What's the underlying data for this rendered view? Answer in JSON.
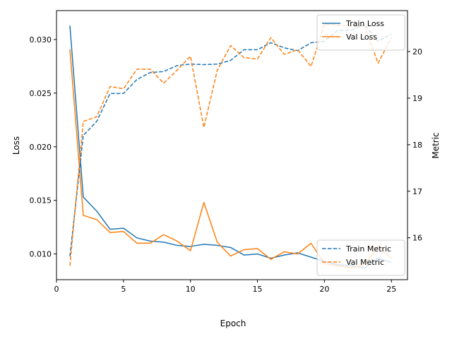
{
  "chart_data": {
    "type": "line",
    "xlabel": "Epoch",
    "ylabel_left": "Loss",
    "ylabel_right": "Metric",
    "xlim": [
      0,
      26.2
    ],
    "ylim_left": [
      0.0076,
      0.0327
    ],
    "ylim_right": [
      15.1,
      20.88
    ],
    "x_ticks": [
      0,
      5,
      10,
      15,
      20,
      25
    ],
    "y_ticks_left": [
      0.01,
      0.015,
      0.02,
      0.025,
      0.03
    ],
    "y_ticks_right": [
      16,
      17,
      18,
      19,
      20
    ],
    "grid": false,
    "x": [
      1,
      2,
      3,
      4,
      5,
      6,
      7,
      8,
      9,
      10,
      11,
      12,
      13,
      14,
      15,
      16,
      17,
      18,
      19,
      20,
      21,
      22,
      23,
      24,
      25
    ],
    "series": [
      {
        "name": "Train Loss",
        "axis": "left",
        "style": "solid",
        "color": "#1f77b4",
        "values": [
          0.0313,
          0.0153,
          0.014,
          0.0123,
          0.0124,
          0.0115,
          0.0112,
          0.0111,
          0.0108,
          0.0107,
          0.0109,
          0.0108,
          0.0106,
          0.0099,
          0.01,
          0.0096,
          0.0099,
          0.0101,
          0.0097,
          0.0093,
          0.009,
          0.0089,
          0.0087,
          0.0096,
          0.0092
        ]
      },
      {
        "name": "Val Loss",
        "axis": "left",
        "style": "solid",
        "color": "#ff7f0e",
        "values": [
          0.0291,
          0.0136,
          0.0132,
          0.012,
          0.0121,
          0.011,
          0.011,
          0.0118,
          0.0112,
          0.0103,
          0.0148,
          0.0111,
          0.0098,
          0.0104,
          0.0105,
          0.0095,
          0.0102,
          0.01,
          0.011,
          0.0091,
          0.0089,
          0.0087,
          0.009,
          0.0107,
          0.0096
        ]
      },
      {
        "name": "Train Metric",
        "axis": "right",
        "style": "dashed",
        "color": "#1f77b4",
        "values": [
          15.6,
          18.2,
          18.5,
          19.1,
          19.1,
          19.4,
          19.55,
          19.57,
          19.7,
          19.73,
          19.72,
          19.73,
          19.81,
          20.04,
          20.04,
          20.19,
          20.08,
          20.02,
          20.19,
          20.22,
          20.46,
          20.46,
          20.58,
          20.22,
          20.38
        ]
      },
      {
        "name": "Val Metric",
        "axis": "right",
        "style": "dashed",
        "color": "#ff7f0e",
        "values": [
          15.4,
          18.5,
          18.6,
          19.25,
          19.2,
          19.62,
          19.62,
          19.32,
          19.6,
          19.9,
          18.37,
          19.6,
          20.13,
          19.87,
          19.84,
          20.3,
          19.94,
          20.04,
          19.68,
          20.59,
          20.57,
          20.55,
          20.55,
          19.75,
          20.3
        ]
      }
    ],
    "legends": [
      {
        "placement": "top-right",
        "entries": [
          "Train Loss",
          "Val Loss"
        ]
      },
      {
        "placement": "bottom-right",
        "entries": [
          "Train Metric",
          "Val Metric"
        ]
      }
    ]
  }
}
